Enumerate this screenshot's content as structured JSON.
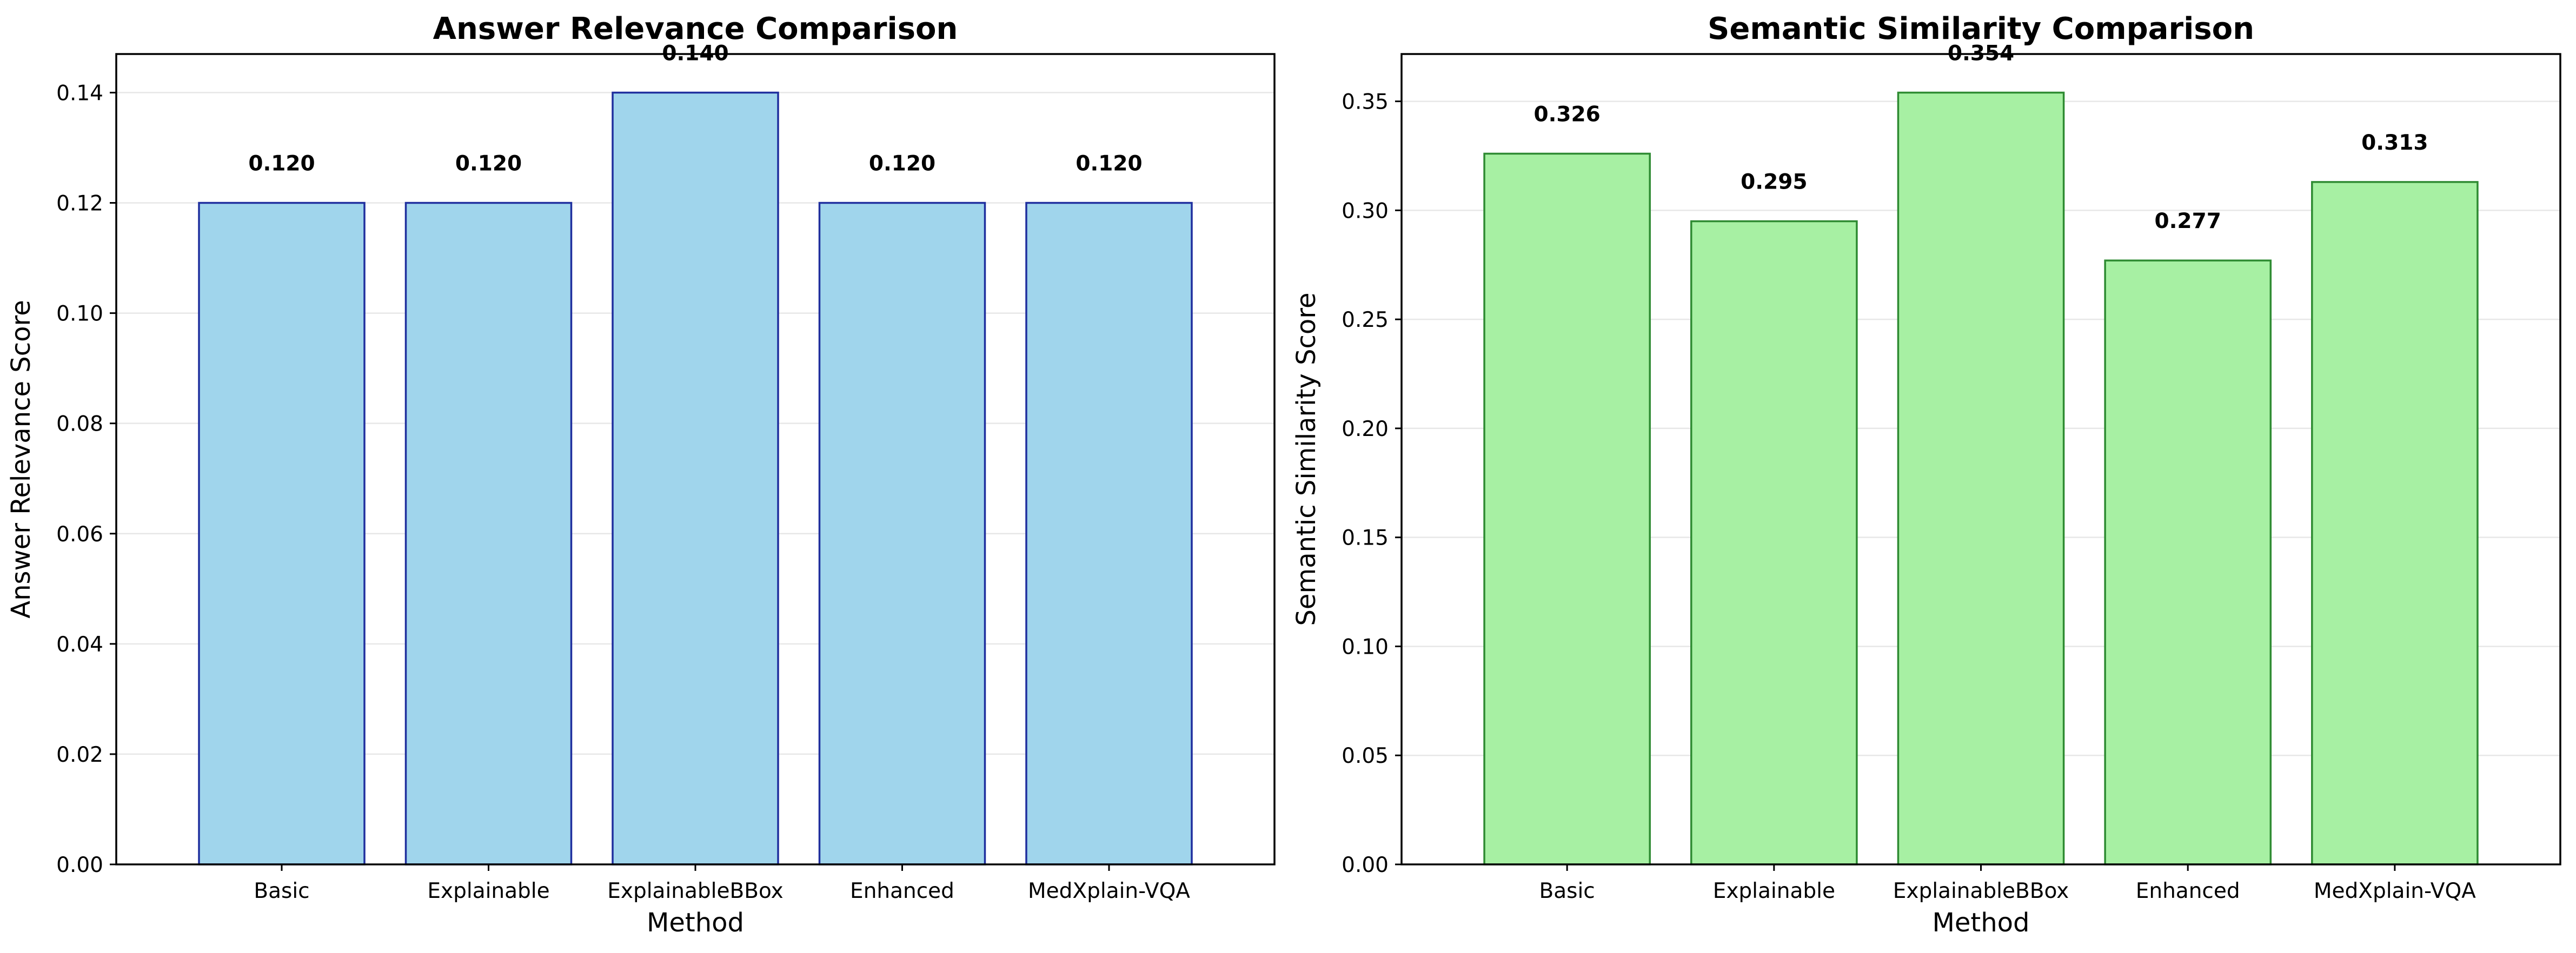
{
  "chart_data": [
    {
      "type": "bar",
      "title": "Answer Relevance Comparison",
      "xlabel": "Method",
      "ylabel": "Answer Relevance Score",
      "categories": [
        "Basic",
        "Explainable",
        "ExplainableBBox",
        "Enhanced",
        "MedXplain-VQA"
      ],
      "values": [
        0.12,
        0.12,
        0.14,
        0.12,
        0.12
      ],
      "value_labels": [
        "0.120",
        "0.120",
        "0.140",
        "0.120",
        "0.120"
      ],
      "ylim": [
        0,
        0.147
      ],
      "yticks": [
        0.0,
        0.02,
        0.04,
        0.06,
        0.08,
        0.1,
        0.12,
        0.14
      ],
      "ytick_labels": [
        "0.00",
        "0.02",
        "0.04",
        "0.06",
        "0.08",
        "0.10",
        "0.12",
        "0.14"
      ],
      "grid": "y",
      "bar_color": "#a0d5ec",
      "edge_color": "#1f2f9e"
    },
    {
      "type": "bar",
      "title": "Semantic Similarity Comparison",
      "xlabel": "Method",
      "ylabel": "Semantic Similarity Score",
      "categories": [
        "Basic",
        "Explainable",
        "ExplainableBBox",
        "Enhanced",
        "MedXplain-VQA"
      ],
      "values": [
        0.326,
        0.295,
        0.354,
        0.277,
        0.313
      ],
      "value_labels": [
        "0.326",
        "0.295",
        "0.354",
        "0.277",
        "0.313"
      ],
      "ylim": [
        0,
        0.3717
      ],
      "yticks": [
        0.0,
        0.05,
        0.1,
        0.15,
        0.2,
        0.25,
        0.3,
        0.35
      ],
      "ytick_labels": [
        "0.00",
        "0.05",
        "0.10",
        "0.15",
        "0.20",
        "0.25",
        "0.30",
        "0.35"
      ],
      "grid": "y",
      "bar_color": "#a7f0a3",
      "edge_color": "#2e8b32"
    }
  ]
}
